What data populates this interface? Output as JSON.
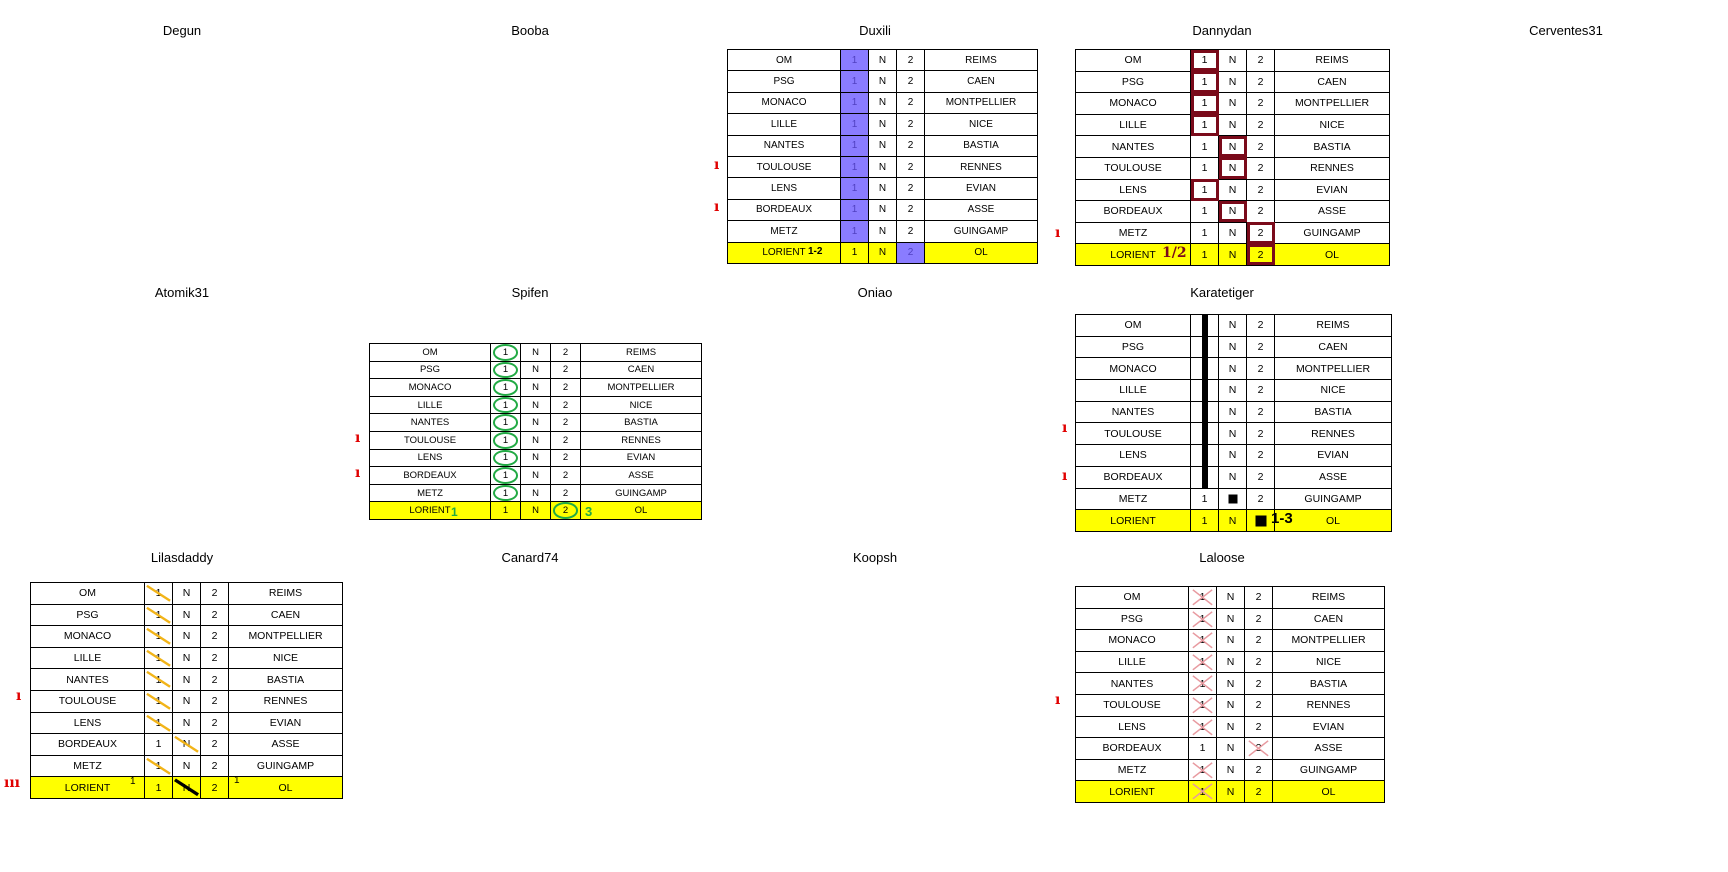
{
  "columns": [
    "home",
    "one",
    "draw",
    "two",
    "away"
  ],
  "grid_labels": {
    "one": "1",
    "draw": "N",
    "two": "2"
  },
  "matches": [
    {
      "home": "OM",
      "away": "REIMS"
    },
    {
      "home": "PSG",
      "away": "CAEN"
    },
    {
      "home": "MONACO",
      "away": "MONTPELLIER"
    },
    {
      "home": "LILLE",
      "away": "NICE"
    },
    {
      "home": "NANTES",
      "away": "BASTIA"
    },
    {
      "home": "TOULOUSE",
      "away": "RENNES"
    },
    {
      "home": "LENS",
      "away": "EVIAN"
    },
    {
      "home": "BORDEAUX",
      "away": "ASSE"
    },
    {
      "home": "METZ",
      "away": "GUINGAMP"
    },
    {
      "home": "LORIENT",
      "away": "OL"
    }
  ],
  "players": [
    "Degun",
    "Booba",
    "Duxili",
    "Dannydan",
    "Cerventes31",
    "Atomik31",
    "Spifen",
    "Oniao",
    "Karatetiger",
    "Lilasdaddy",
    "Canard74",
    "Koopsh",
    "Laloose"
  ],
  "scores": {
    "duxili": "1-2",
    "dannydan": "1/2",
    "spifen_left": "1",
    "spifen_right": "3",
    "karatetiger": "1-3",
    "lilasdaddy_left": "1",
    "lilasdaddy_right": "1"
  },
  "marks": {
    "single": "ı",
    "triple": "ııı"
  },
  "colors": {
    "lorient_row": "#ffff00",
    "duxili_highlight": "#8a7cff",
    "dannydan_box": "#7a0a1a",
    "spifen_circle": "#22aa44",
    "karatetiger_bar": "#000000",
    "lilasdaddy_slash": "#f2b418",
    "laloose_cross": "#e89aa0",
    "margin_tick": "#e00000"
  }
}
